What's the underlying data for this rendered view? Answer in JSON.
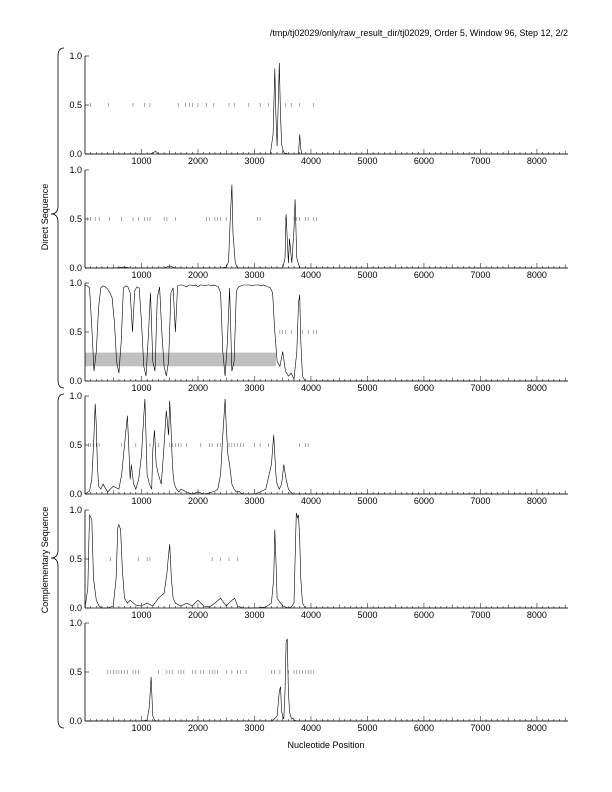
{
  "title": "/tmp/tj02029/only/raw_result_dir/tj02029, Order 5, Window 96, Step 12, 2/2",
  "chart_data": {
    "type": "line",
    "xlabel": "Nucleotide Position",
    "group_labels": [
      "Direct Sequence",
      "Complementary Sequence"
    ],
    "xlim": [
      0,
      8550
    ],
    "ylim": [
      0,
      1
    ],
    "x_ticks": [
      1000,
      2000,
      3000,
      4000,
      5000,
      6000,
      7000,
      8000
    ],
    "y_ticks": [
      0.0,
      0.5,
      1.0
    ],
    "x_tick_labels": [
      "1000",
      "2000",
      "3000",
      "4000",
      "5000",
      "6000",
      "7000",
      "8000"
    ],
    "y_tick_labels": [
      "0.0",
      "0.5",
      "1.0"
    ],
    "panels": [
      {
        "group": "Direct Sequence",
        "x": [
          0,
          1150,
          1200,
          1250,
          1300,
          3280,
          3330,
          3360,
          3380,
          3400,
          3420,
          3440,
          3460,
          3480,
          3500,
          3520,
          3540,
          3560,
          3580,
          3600,
          3650,
          3700,
          3780,
          3800,
          3820,
          3840,
          3900,
          8550
        ],
        "y": [
          0,
          0,
          0.01,
          0.03,
          0,
          0,
          0.2,
          0.87,
          0.4,
          0.08,
          0.5,
          0.93,
          0.4,
          0.1,
          0.05,
          0.02,
          0,
          0.01,
          0,
          0,
          0,
          0,
          0,
          0.2,
          0.05,
          0,
          0,
          0
        ],
        "marks": [
          100,
          420,
          850,
          1050,
          1150,
          1650,
          1780,
          1850,
          1900,
          2000,
          2150,
          2280,
          2550,
          2650,
          2900,
          3100,
          3250,
          3550,
          3650,
          3800,
          4050
        ]
      },
      {
        "group": "Direct Sequence",
        "x": [
          0,
          500,
          700,
          800,
          900,
          1400,
          1500,
          1600,
          2400,
          2500,
          2540,
          2580,
          2600,
          2620,
          2660,
          2700,
          3000,
          3500,
          3540,
          3560,
          3600,
          3620,
          3660,
          3700,
          3720,
          3750,
          3800,
          8550
        ],
        "y": [
          0,
          0,
          0.01,
          0,
          0,
          0,
          0.02,
          0,
          0,
          0.01,
          0.06,
          0.6,
          0.85,
          0.35,
          0.05,
          0,
          0,
          0,
          0.1,
          0.55,
          0.05,
          0.3,
          0.05,
          0.4,
          0.7,
          0.1,
          0,
          0
        ],
        "marks": [
          50,
          100,
          180,
          250,
          430,
          650,
          850,
          950,
          1050,
          1100,
          1150,
          1400,
          1450,
          1600,
          2150,
          2200,
          2300,
          2350,
          2400,
          2500,
          3050,
          3100,
          3550,
          3700,
          3750,
          3800,
          3900,
          3950,
          4050,
          4100
        ]
      },
      {
        "group": "Direct Sequence",
        "x": [
          0,
          40,
          80,
          120,
          160,
          200,
          240,
          280,
          320,
          360,
          400,
          440,
          480,
          520,
          560,
          600,
          640,
          680,
          720,
          760,
          800,
          840,
          880,
          920,
          960,
          1000,
          1040,
          1080,
          1120,
          1160,
          1200,
          1240,
          1280,
          1320,
          1360,
          1400,
          1440,
          1480,
          1520,
          1560,
          1600,
          1640,
          1680,
          1720,
          1760,
          1800,
          1840,
          1880,
          1920,
          1960,
          2000,
          2040,
          2080,
          2120,
          2160,
          2200,
          2240,
          2280,
          2320,
          2360,
          2400,
          2440,
          2480,
          2520,
          2560,
          2600,
          2640,
          2680,
          2720,
          2760,
          2800,
          2840,
          2880,
          2920,
          2960,
          3000,
          3040,
          3080,
          3120,
          3160,
          3200,
          3240,
          3280,
          3320,
          3360,
          3400,
          3450,
          3500,
          3550,
          3600,
          3650,
          3700,
          3750,
          3780,
          3800,
          3820,
          3850,
          3900,
          3950,
          8550
        ],
        "y": [
          0.98,
          0.97,
          0.95,
          0.55,
          0.1,
          0.3,
          0.75,
          0.95,
          0.97,
          0.96,
          0.94,
          0.9,
          0.85,
          0.6,
          0.2,
          0.08,
          0.4,
          0.95,
          0.97,
          0.96,
          0.9,
          0.5,
          0.92,
          0.96,
          0.95,
          0.6,
          0.15,
          0.05,
          0.45,
          0.9,
          0.2,
          0.1,
          0.85,
          0.96,
          0.5,
          0.15,
          0.05,
          0.2,
          0.9,
          0.95,
          0.5,
          0.97,
          0.98,
          0.98,
          0.97,
          0.96,
          0.98,
          0.98,
          0.97,
          0.98,
          0.96,
          0.98,
          0.98,
          0.97,
          0.98,
          0.98,
          0.97,
          0.98,
          0.97,
          0.96,
          0.9,
          0.3,
          0.05,
          0.4,
          0.95,
          0.1,
          0.2,
          0.92,
          0.96,
          0.97,
          0.98,
          0.98,
          0.98,
          0.98,
          0.97,
          0.98,
          0.98,
          0.98,
          0.97,
          0.98,
          0.97,
          0.96,
          0.95,
          0.9,
          0.5,
          0.2,
          0.15,
          0.3,
          0.1,
          0.05,
          0.08,
          0.02,
          0.3,
          0.8,
          0.88,
          0.4,
          0.05,
          0,
          0,
          0
        ],
        "marks": [
          3450,
          3500,
          3550,
          3650,
          3850,
          3950,
          4050,
          4100
        ],
        "band": [
          0,
          3380
        ]
      },
      {
        "group": "Complementary Sequence",
        "x": [
          0,
          80,
          120,
          160,
          180,
          200,
          220,
          240,
          280,
          320,
          400,
          500,
          600,
          650,
          700,
          750,
          780,
          800,
          820,
          860,
          900,
          950,
          1000,
          1040,
          1060,
          1080,
          1100,
          1140,
          1180,
          1200,
          1230,
          1260,
          1300,
          1350,
          1400,
          1440,
          1480,
          1500,
          1520,
          1540,
          1560,
          1580,
          1620,
          1660,
          1700,
          1800,
          1900,
          2000,
          2100,
          2200,
          2300,
          2350,
          2400,
          2440,
          2480,
          2500,
          2530,
          2560,
          2600,
          2640,
          2680,
          2720,
          2760,
          2800,
          2900,
          3000,
          3100,
          3200,
          3300,
          3340,
          3360,
          3380,
          3400,
          3440,
          3480,
          3520,
          3560,
          3600,
          3640,
          3680,
          3700,
          8550
        ],
        "y": [
          0,
          0.03,
          0.15,
          0.6,
          0.92,
          0.7,
          0.3,
          0.08,
          0.05,
          0.1,
          0.02,
          0.08,
          0.05,
          0.2,
          0.5,
          0.8,
          0.4,
          0.15,
          0.3,
          0.1,
          0.05,
          0.15,
          0.4,
          0.8,
          0.97,
          0.6,
          0.2,
          0.1,
          0.05,
          0.45,
          0.65,
          0.3,
          0.2,
          0.1,
          0.5,
          0.85,
          0.6,
          0.95,
          0.7,
          0.4,
          0.2,
          0.1,
          0.05,
          0.02,
          0.05,
          0.02,
          0,
          0.02,
          0,
          0.01,
          0.03,
          0.05,
          0.2,
          0.6,
          0.97,
          0.7,
          0.4,
          0.3,
          0.1,
          0.05,
          0.02,
          0.03,
          0.01,
          0,
          0,
          0,
          0.02,
          0.05,
          0.3,
          0.6,
          0.4,
          0.2,
          0.1,
          0.05,
          0.1,
          0.3,
          0.15,
          0.05,
          0.02,
          0,
          0,
          0
        ],
        "marks": [
          60,
          100,
          150,
          200,
          250,
          650,
          900,
          1150,
          1300,
          1500,
          1550,
          1600,
          1650,
          1700,
          1800,
          2050,
          2200,
          2250,
          2350,
          2400,
          2550,
          2600,
          2650,
          2700,
          2750,
          2800,
          3000,
          3100,
          3250,
          3350,
          3800,
          3900,
          3950
        ]
      },
      {
        "group": "Complementary Sequence",
        "x": [
          0,
          50,
          80,
          120,
          150,
          200,
          250,
          300,
          400,
          500,
          550,
          580,
          600,
          630,
          660,
          700,
          750,
          800,
          900,
          1000,
          1100,
          1200,
          1300,
          1400,
          1450,
          1480,
          1500,
          1530,
          1560,
          1600,
          1700,
          1800,
          1900,
          2000,
          2100,
          2200,
          2300,
          2400,
          2500,
          2550,
          2600,
          2650,
          2700,
          2800,
          3000,
          3200,
          3300,
          3340,
          3360,
          3380,
          3400,
          3500,
          3600,
          3650,
          3700,
          3720,
          3740,
          3760,
          3780,
          3800,
          3820,
          3850,
          3900,
          8550
        ],
        "y": [
          0,
          0.2,
          0.95,
          0.9,
          0.3,
          0.08,
          0.02,
          0,
          0,
          0.02,
          0.3,
          0.82,
          0.85,
          0.8,
          0.4,
          0.1,
          0.05,
          0.08,
          0.03,
          0.02,
          0.05,
          0.02,
          0.1,
          0.15,
          0.35,
          0.55,
          0.65,
          0.3,
          0.1,
          0.05,
          0.02,
          0.05,
          0.02,
          0.08,
          0.02,
          0.01,
          0.05,
          0.1,
          0.02,
          0.05,
          0.08,
          0.1,
          0.02,
          0,
          0,
          0.01,
          0.05,
          0.3,
          0.8,
          0.5,
          0.1,
          0.02,
          0,
          0.01,
          0.05,
          0.5,
          0.97,
          0.92,
          0.95,
          0.7,
          0.3,
          0.05,
          0,
          0
        ],
        "marks": [
          450,
          950,
          1100,
          1150,
          2250,
          2400,
          2550,
          2700
        ]
      },
      {
        "group": "Complementary Sequence",
        "x": [
          0,
          1000,
          1100,
          1140,
          1170,
          1200,
          1230,
          1260,
          1300,
          3300,
          3350,
          3400,
          3440,
          3460,
          3480,
          3500,
          3520,
          3540,
          3560,
          3580,
          3600,
          3620,
          3640,
          3660,
          3680,
          3700,
          3750,
          3800,
          3850,
          3900,
          8550
        ],
        "y": [
          0,
          0,
          0.01,
          0.15,
          0.45,
          0.05,
          0.01,
          0,
          0,
          0,
          0.02,
          0.05,
          0.3,
          0.35,
          0.1,
          0.05,
          0.02,
          0.3,
          0.8,
          0.84,
          0.3,
          0.1,
          0.05,
          0.02,
          0.03,
          0.01,
          0,
          0,
          0,
          0,
          0
        ],
        "marks": [
          400,
          450,
          500,
          550,
          600,
          650,
          700,
          750,
          850,
          900,
          950,
          1300,
          1450,
          1500,
          1550,
          1650,
          1700,
          1750,
          1900,
          1950,
          2050,
          2100,
          2200,
          2250,
          2300,
          2350,
          2500,
          2600,
          2700,
          2750,
          2850,
          3300,
          3350,
          3450,
          3600,
          3700,
          3750,
          3800,
          3850,
          3900,
          3950,
          4000,
          4050
        ]
      }
    ]
  }
}
